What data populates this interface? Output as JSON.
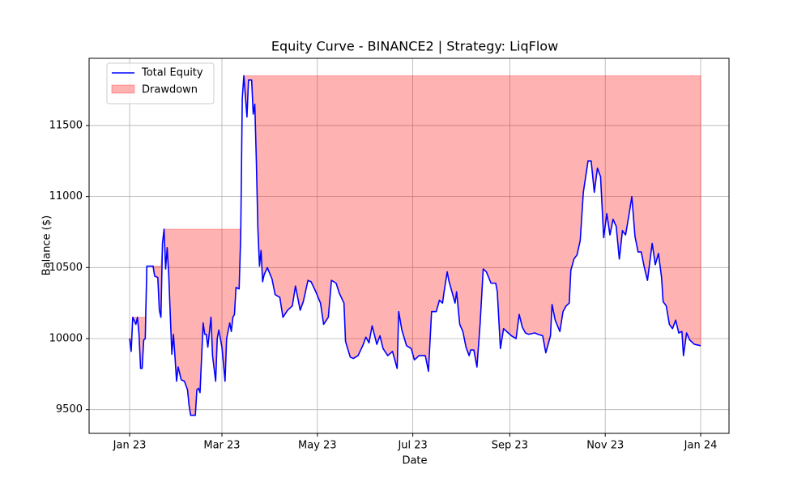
{
  "chart_data": {
    "type": "equity-drawdown",
    "title": "Equity Curve - BINANCE2 | Strategy: LiqFlow",
    "x_label": "Date",
    "y_label": "Balance ($)",
    "x": [
      0,
      1,
      2,
      4,
      5,
      6,
      7,
      8,
      9,
      10,
      11,
      15,
      16,
      18,
      19,
      20,
      21,
      22,
      23,
      24,
      25,
      26,
      27,
      28,
      29,
      30,
      31,
      33,
      35,
      37,
      38,
      39,
      42,
      43,
      44,
      45,
      47,
      48,
      49,
      50,
      52,
      53,
      55,
      56,
      57,
      58,
      59,
      60,
      61,
      62,
      64,
      65,
      66,
      67,
      68,
      70,
      71,
      72,
      73,
      75,
      76,
      78,
      79,
      80,
      81,
      82,
      83,
      84,
      85,
      86,
      88,
      91,
      93,
      96,
      98,
      101,
      104,
      106,
      109,
      111,
      114,
      116,
      119,
      122,
      124,
      127,
      129,
      132,
      134,
      137,
      138,
      141,
      143,
      146,
      149,
      151,
      153,
      155,
      158,
      160,
      162,
      165,
      168,
      171,
      172,
      174,
      177,
      180,
      182,
      185,
      189,
      191,
      193,
      194,
      196,
      198,
      200,
      201,
      203,
      204,
      206,
      208,
      209,
      211,
      213,
      215,
      217,
      218,
      220,
      222,
      224,
      226,
      228,
      231,
      234,
      235,
      237,
      239,
      242,
      244,
      247,
      249,
      251,
      253,
      255,
      259,
      261,
      264,
      266,
      269,
      270,
      272,
      275,
      277,
      279,
      281,
      282,
      284,
      286,
      288,
      290,
      293,
      295,
      297,
      299,
      301,
      303,
      305,
      307,
      309,
      311,
      313,
      315,
      317,
      319,
      321,
      323,
      325,
      327,
      329,
      331,
      334,
      336,
      338,
      340,
      341,
      343,
      345,
      347,
      349,
      351,
      353,
      354,
      356,
      358,
      361,
      365
    ],
    "series": [
      {
        "name": "Total Equity",
        "color": "#0000ff",
        "values": [
          10000,
          9910,
          10150,
          10100,
          10150,
          10030,
          9790,
          9790,
          9990,
          10000,
          10510,
          10510,
          10440,
          10430,
          10200,
          10150,
          10670,
          10770,
          10490,
          10640,
          10450,
          10160,
          9890,
          10030,
          9870,
          9700,
          9800,
          9710,
          9700,
          9640,
          9530,
          9460,
          9460,
          9640,
          9650,
          9620,
          10110,
          10030,
          10030,
          9940,
          10150,
          9880,
          9700,
          10000,
          10060,
          10000,
          9940,
          9820,
          9700,
          10000,
          10110,
          10050,
          10150,
          10170,
          10360,
          10350,
          10720,
          11690,
          11850,
          11560,
          11820,
          11820,
          11580,
          11650,
          11250,
          10770,
          10510,
          10620,
          10400,
          10450,
          10500,
          10420,
          10310,
          10290,
          10150,
          10200,
          10230,
          10370,
          10200,
          10260,
          10410,
          10400,
          10330,
          10250,
          10100,
          10150,
          10410,
          10390,
          10320,
          10250,
          9980,
          9870,
          9860,
          9880,
          9950,
          10010,
          9970,
          10090,
          9960,
          10020,
          9930,
          9880,
          9910,
          9790,
          10190,
          10060,
          9950,
          9930,
          9850,
          9880,
          9880,
          9770,
          10190,
          10190,
          10190,
          10270,
          10250,
          10330,
          10470,
          10410,
          10330,
          10250,
          10330,
          10100,
          10050,
          9940,
          9880,
          9920,
          9920,
          9800,
          10100,
          10490,
          10470,
          10390,
          10390,
          10330,
          9930,
          10070,
          10040,
          10020,
          10000,
          10170,
          10080,
          10040,
          10030,
          10040,
          10030,
          10020,
          9900,
          10020,
          10240,
          10130,
          10050,
          10190,
          10230,
          10250,
          10480,
          10560,
          10590,
          10690,
          11030,
          11250,
          11250,
          11030,
          11200,
          11140,
          10710,
          10880,
          10730,
          10840,
          10790,
          10560,
          10760,
          10730,
          10860,
          11000,
          10720,
          10610,
          10610,
          10500,
          10410,
          10670,
          10520,
          10600,
          10430,
          10260,
          10230,
          10100,
          10070,
          10130,
          10040,
          10050,
          9880,
          10040,
          9990,
          9960,
          9950
        ]
      }
    ],
    "drawdown": {
      "name": "Drawdown",
      "color": "#ff0000",
      "alpha": 0.3
    },
    "xlim": [
      -25.9,
      383.1
    ],
    "ylim": [
      9333,
      11973
    ],
    "xticks": [
      {
        "value": 0,
        "label": "Jan 23"
      },
      {
        "value": 59,
        "label": "Mar 23"
      },
      {
        "value": 120,
        "label": "May 23"
      },
      {
        "value": 181,
        "label": "Jul 23"
      },
      {
        "value": 243,
        "label": "Sep 23"
      },
      {
        "value": 304,
        "label": "Nov 23"
      },
      {
        "value": 365,
        "label": "Jan 24"
      }
    ],
    "yticks": [
      9500,
      10000,
      10500,
      11000,
      11500
    ],
    "grid": true,
    "legend": "upper left"
  }
}
